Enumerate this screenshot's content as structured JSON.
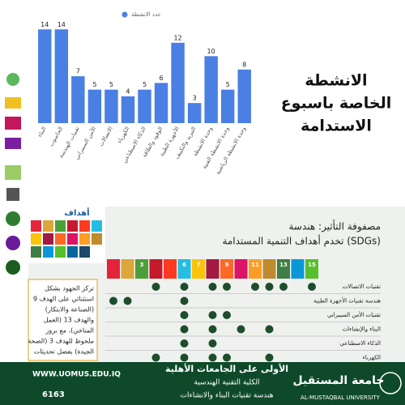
{
  "chart_data": {
    "type": "bar",
    "legend": "عدد الانشطة",
    "categories": [
      "البناء",
      "الحاسوب",
      "تقنيات الهندسة",
      "الأمن السيبراني",
      "الاتصالات",
      "الكهرباء",
      "الذكاء الاصطناعي",
      "الوقود والطاقة",
      "الأجهزة الطبية",
      "التبريد والتكييف",
      "وحدة الانشطة",
      "وحدة الانشطة الفنية",
      "وحدة الانشطة الرياضية"
    ],
    "values": [
      14,
      14,
      7,
      5,
      5,
      4,
      5,
      6,
      12,
      3,
      10,
      5,
      8
    ],
    "color": "#4a7fe3",
    "ylim": [
      0,
      15
    ]
  },
  "side_title": [
    "الانشطة",
    "الخاصة باسبوع",
    "الاستدامة"
  ],
  "sdg_label": "أهداف",
  "matrix": {
    "title": [
      "مصفوفة التأثير: هندسة",
      "تخدم أهداف التنمية المستدامة (SDGs)"
    ],
    "header": [
      "3",
      "6",
      "7",
      "9",
      "11",
      "13",
      "15"
    ],
    "rows": [
      "تقنيات الاتصالات",
      "هندسة تقنيات الأجهزة الطبية",
      "تقنيات الأمن السيبراني",
      "البناء والإنشاءات",
      "الذكاء الاصطناعي",
      "الكهرباء"
    ]
  },
  "note": [
    "تركز الجهود بشكل",
    "استثنائي على الهدف 9",
    "(الصناعة والابتكار)",
    "والهدف 13 (العمل",
    "المناخي)، مع بروز",
    "ملحوظ للهدف 3 (الصحة",
    "الجيدة) بفضل تحديثات"
  ],
  "footer": {
    "web": "WWW.UOMUS.EDU.IQ",
    "phone": "6163",
    "line1": "الأولى على الجامعات الأهلية",
    "line2": "الكلية التقنية الهندسية",
    "line3": "هندسة تقنيات البناء والانشاءات",
    "uni_ar": "جامعة المستقبل",
    "uni_en": "AL-MUSTAQBAL UNIVERSITY"
  }
}
